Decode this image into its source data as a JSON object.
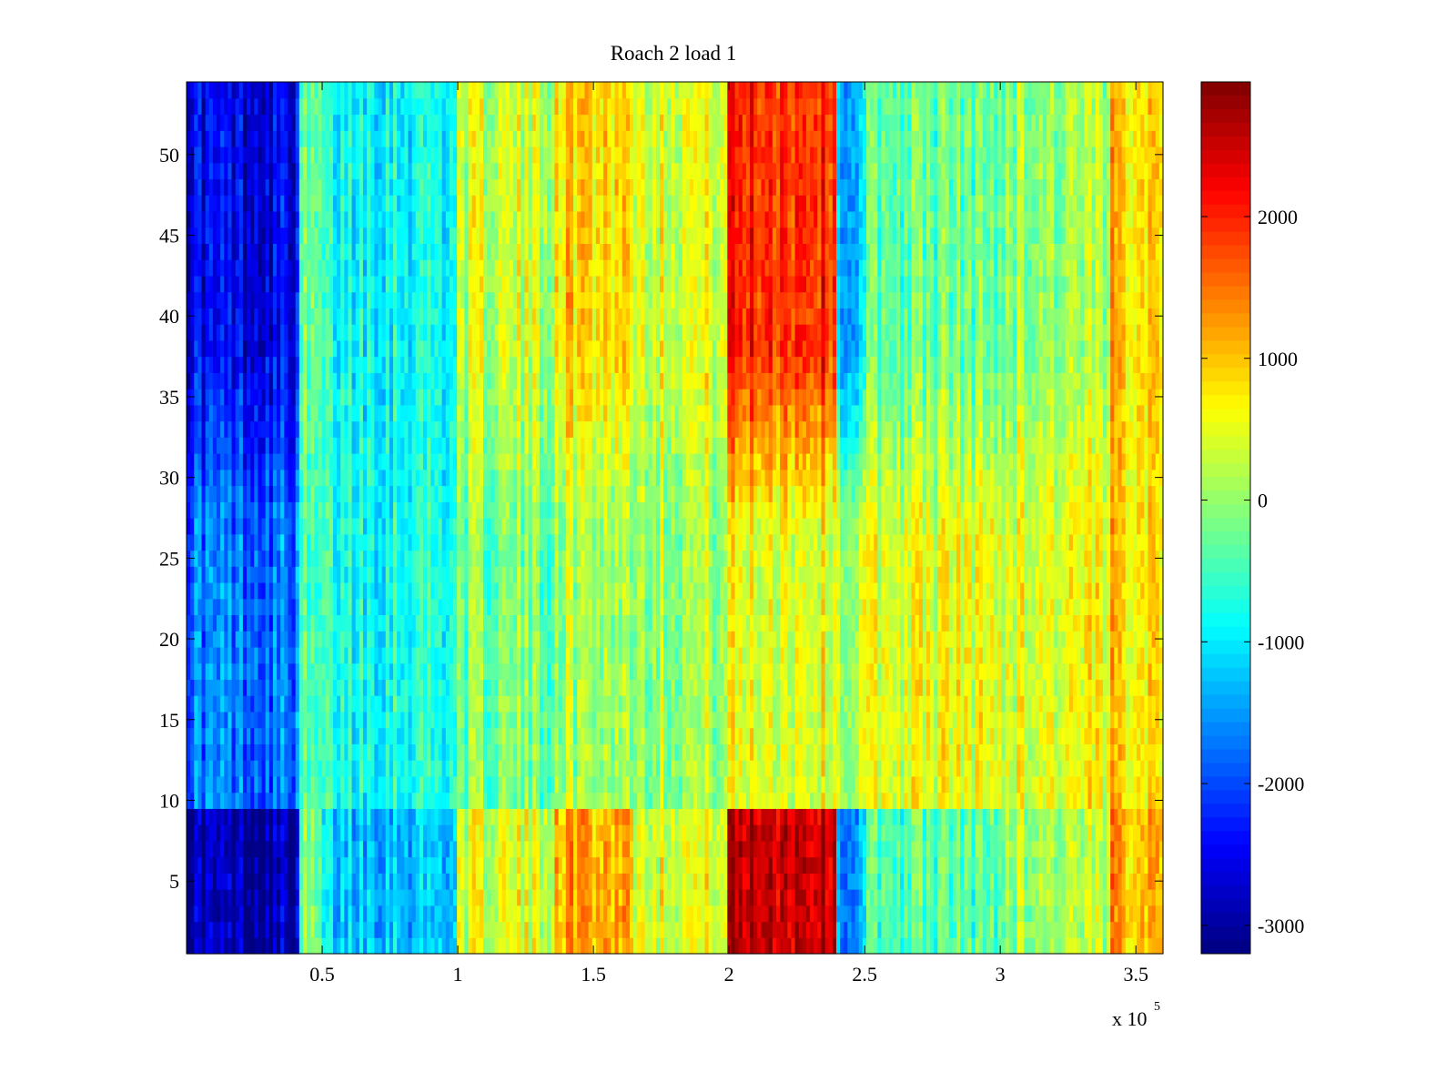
{
  "chart_data": {
    "type": "heatmap",
    "title": "Roach 2 load 1",
    "xlabel": "",
    "ylabel": "",
    "x_multiplier_label": "x 10",
    "x_multiplier_exponent": "5",
    "xlim": [
      0.0,
      3.6
    ],
    "ylim": [
      0.5,
      54.5
    ],
    "xticks": [
      0.5,
      1,
      1.5,
      2,
      2.5,
      3,
      3.5
    ],
    "xtick_labels": [
      "0.5",
      "1",
      "1.5",
      "2",
      "2.5",
      "3",
      "3.5"
    ],
    "yticks": [
      5,
      10,
      15,
      20,
      25,
      30,
      35,
      40,
      45,
      50
    ],
    "ytick_labels": [
      "5",
      "10",
      "15",
      "20",
      "25",
      "30",
      "35",
      "40",
      "45",
      "50"
    ],
    "colorbar": {
      "colormap": "jet",
      "clim": [
        -3200,
        2950
      ],
      "ticks": [
        -3000,
        -2000,
        -1000,
        0,
        1000,
        2000
      ],
      "tick_labels": [
        "-3000",
        "-2000",
        "-1000",
        "0",
        "1000",
        "2000"
      ]
    },
    "rows": 54,
    "x_segments": [
      {
        "x": [
          0.0,
          0.41
        ],
        "top_rows": -2500,
        "middle_rows": -1700,
        "bottom_rows": -2900
      },
      {
        "x": [
          0.41,
          0.5
        ],
        "top_rows": -400,
        "middle_rows": -600,
        "bottom_rows": -300
      },
      {
        "x": [
          0.5,
          1.0
        ],
        "top_rows": -800,
        "middle_rows": -700,
        "bottom_rows": -1200
      },
      {
        "x": [
          1.0,
          1.35
        ],
        "top_rows": 300,
        "middle_rows": -200,
        "bottom_rows": 400
      },
      {
        "x": [
          1.35,
          1.65
        ],
        "top_rows": 900,
        "middle_rows": 100,
        "bottom_rows": 1200
      },
      {
        "x": [
          1.65,
          2.0
        ],
        "top_rows": 500,
        "middle_rows": 100,
        "bottom_rows": 500
      },
      {
        "x": [
          2.0,
          2.4
        ],
        "top_rows": 2000,
        "middle_rows": 500,
        "bottom_rows": 2600
      },
      {
        "x": [
          2.4,
          2.5
        ],
        "top_rows": -1300,
        "middle_rows": 200,
        "bottom_rows": -1500
      },
      {
        "x": [
          2.5,
          3.0
        ],
        "top_rows": -300,
        "middle_rows": 500,
        "bottom_rows": -400
      },
      {
        "x": [
          3.0,
          3.4
        ],
        "top_rows": 0,
        "middle_rows": 500,
        "bottom_rows": 100
      },
      {
        "x": [
          3.4,
          3.6
        ],
        "top_rows": 1000,
        "middle_rows": 900,
        "bottom_rows": 1200
      }
    ],
    "grid": false
  }
}
